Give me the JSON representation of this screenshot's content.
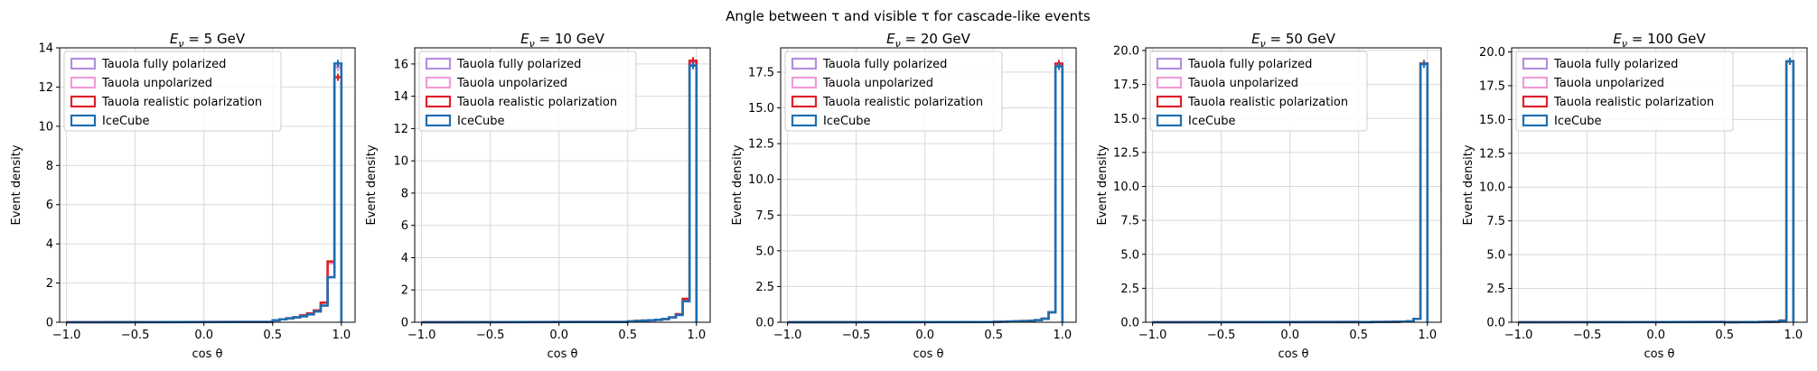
{
  "figure": {
    "title": "Angle between τ and visible τ for cascade-like events"
  },
  "colors": {
    "fully_polarized": "#b48ee0",
    "unpolarized": "#f09cd8",
    "realistic": "#e0202a",
    "icecube": "#1f6fb0",
    "grid": "#d9d9d9"
  },
  "chart_data": [
    {
      "type": "histogram",
      "title": "E_ν = 5 GeV",
      "xlabel": "cos θ",
      "ylabel": "Event density",
      "xlim": [
        -1.05,
        1.1
      ],
      "ylim": [
        0,
        14
      ],
      "xticks": [
        "−1.0",
        "−0.5",
        "0.0",
        "0.5",
        "1.0"
      ],
      "yticks": [
        "0",
        "2",
        "4",
        "6",
        "8",
        "10",
        "12",
        "14"
      ],
      "grid": true,
      "legend_location": "upper left",
      "bin_edges": [
        0.5,
        0.55,
        0.6,
        0.65,
        0.7,
        0.75,
        0.8,
        0.85,
        0.9,
        0.95,
        1.0
      ],
      "series": [
        {
          "name": "Tauola fully polarized",
          "values": [
            0.1,
            0.15,
            0.2,
            0.25,
            0.35,
            0.45,
            0.6,
            1.0,
            3.05,
            13.0
          ]
        },
        {
          "name": "Tauola unpolarized",
          "values": [
            0.1,
            0.15,
            0.2,
            0.25,
            0.35,
            0.45,
            0.6,
            1.0,
            3.0,
            13.05
          ]
        },
        {
          "name": "Tauola realistic polarization",
          "values": [
            0.1,
            0.15,
            0.2,
            0.25,
            0.35,
            0.45,
            0.6,
            1.0,
            3.1,
            12.5
          ]
        },
        {
          "name": "IceCube",
          "values": [
            0.1,
            0.15,
            0.2,
            0.25,
            0.3,
            0.4,
            0.55,
            0.85,
            2.3,
            13.2
          ]
        }
      ]
    },
    {
      "type": "histogram",
      "title": "E_ν = 10 GeV",
      "xlabel": "cos θ",
      "ylabel": "Event density",
      "xlim": [
        -1.05,
        1.1
      ],
      "ylim": [
        0,
        17
      ],
      "xticks": [
        "−1.0",
        "−0.5",
        "0.0",
        "0.5",
        "1.0"
      ],
      "yticks": [
        "0",
        "2",
        "4",
        "6",
        "8",
        "10",
        "12",
        "14",
        "16"
      ],
      "grid": true,
      "legend_location": "upper left",
      "bin_edges": [
        0.5,
        0.55,
        0.6,
        0.65,
        0.7,
        0.75,
        0.8,
        0.85,
        0.9,
        0.95,
        1.0
      ],
      "series": [
        {
          "name": "Tauola fully polarized",
          "values": [
            0.05,
            0.08,
            0.1,
            0.12,
            0.15,
            0.2,
            0.3,
            0.5,
            1.4,
            16.1
          ]
        },
        {
          "name": "Tauola unpolarized",
          "values": [
            0.05,
            0.08,
            0.1,
            0.12,
            0.15,
            0.2,
            0.3,
            0.5,
            1.4,
            16.0
          ]
        },
        {
          "name": "Tauola realistic polarization",
          "values": [
            0.05,
            0.08,
            0.1,
            0.12,
            0.15,
            0.2,
            0.3,
            0.5,
            1.45,
            16.2
          ]
        },
        {
          "name": "IceCube",
          "values": [
            0.05,
            0.08,
            0.1,
            0.12,
            0.15,
            0.2,
            0.3,
            0.45,
            1.3,
            15.9
          ]
        }
      ]
    },
    {
      "type": "histogram",
      "title": "E_ν = 20 GeV",
      "xlabel": "cos θ",
      "ylabel": "Event density",
      "xlim": [
        -1.05,
        1.1
      ],
      "ylim": [
        0,
        19.2
      ],
      "xticks": [
        "−1.0",
        "−0.5",
        "0.0",
        "0.5",
        "1.0"
      ],
      "yticks": [
        "0.0",
        "2.5",
        "5.0",
        "7.5",
        "10.0",
        "12.5",
        "15.0",
        "17.5"
      ],
      "grid": true,
      "legend_location": "upper left",
      "bin_edges": [
        0.5,
        0.55,
        0.6,
        0.65,
        0.7,
        0.75,
        0.8,
        0.85,
        0.9,
        0.95,
        1.0
      ],
      "series": [
        {
          "name": "Tauola fully polarized",
          "values": [
            0.03,
            0.04,
            0.05,
            0.07,
            0.08,
            0.1,
            0.15,
            0.25,
            0.7,
            18.0
          ]
        },
        {
          "name": "Tauola unpolarized",
          "values": [
            0.03,
            0.04,
            0.05,
            0.07,
            0.08,
            0.1,
            0.15,
            0.25,
            0.7,
            18.0
          ]
        },
        {
          "name": "Tauola realistic polarization",
          "values": [
            0.03,
            0.04,
            0.05,
            0.07,
            0.08,
            0.1,
            0.15,
            0.25,
            0.7,
            18.1
          ]
        },
        {
          "name": "IceCube",
          "values": [
            0.03,
            0.04,
            0.05,
            0.07,
            0.08,
            0.1,
            0.15,
            0.25,
            0.7,
            17.9
          ]
        }
      ]
    },
    {
      "type": "histogram",
      "title": "E_ν = 50 GeV",
      "xlabel": "cos θ",
      "ylabel": "Event density",
      "xlim": [
        -1.05,
        1.1
      ],
      "ylim": [
        0,
        20.2
      ],
      "xticks": [
        "−1.0",
        "−0.5",
        "0.0",
        "0.5",
        "1.0"
      ],
      "yticks": [
        "0.0",
        "2.5",
        "5.0",
        "7.5",
        "10.0",
        "12.5",
        "15.0",
        "17.5",
        "20.0"
      ],
      "grid": true,
      "legend_location": "upper left",
      "bin_edges": [
        0.5,
        0.55,
        0.6,
        0.65,
        0.7,
        0.75,
        0.8,
        0.85,
        0.9,
        0.95,
        1.0
      ],
      "series": [
        {
          "name": "Tauola fully polarized",
          "values": [
            0.01,
            0.01,
            0.02,
            0.02,
            0.03,
            0.04,
            0.05,
            0.08,
            0.25,
            19.0
          ]
        },
        {
          "name": "Tauola unpolarized",
          "values": [
            0.01,
            0.01,
            0.02,
            0.02,
            0.03,
            0.04,
            0.05,
            0.08,
            0.25,
            19.0
          ]
        },
        {
          "name": "Tauola realistic polarization",
          "values": [
            0.01,
            0.01,
            0.02,
            0.02,
            0.03,
            0.04,
            0.05,
            0.08,
            0.25,
            19.05
          ]
        },
        {
          "name": "IceCube",
          "values": [
            0.01,
            0.01,
            0.02,
            0.02,
            0.03,
            0.04,
            0.05,
            0.08,
            0.25,
            19.0
          ]
        }
      ]
    },
    {
      "type": "histogram",
      "title": "E_ν = 100 GeV",
      "xlabel": "cos θ",
      "ylabel": "Event density",
      "xlim": [
        -1.05,
        1.1
      ],
      "ylim": [
        0,
        20.3
      ],
      "xticks": [
        "−1.0",
        "−0.5",
        "0.0",
        "0.5",
        "1.0"
      ],
      "yticks": [
        "0.0",
        "2.5",
        "5.0",
        "7.5",
        "10.0",
        "12.5",
        "15.0",
        "17.5",
        "20.0"
      ],
      "grid": true,
      "legend_location": "upper left",
      "bin_edges": [
        0.5,
        0.55,
        0.6,
        0.65,
        0.7,
        0.75,
        0.8,
        0.85,
        0.9,
        0.95,
        1.0
      ],
      "series": [
        {
          "name": "Tauola fully polarized",
          "values": [
            0.005,
            0.005,
            0.01,
            0.01,
            0.015,
            0.02,
            0.03,
            0.04,
            0.12,
            19.3
          ]
        },
        {
          "name": "Tauola unpolarized",
          "values": [
            0.005,
            0.005,
            0.01,
            0.01,
            0.015,
            0.02,
            0.03,
            0.04,
            0.12,
            19.3
          ]
        },
        {
          "name": "Tauola realistic polarization",
          "values": [
            0.005,
            0.005,
            0.01,
            0.01,
            0.015,
            0.02,
            0.03,
            0.04,
            0.12,
            19.3
          ]
        },
        {
          "name": "IceCube",
          "values": [
            0.005,
            0.005,
            0.01,
            0.01,
            0.015,
            0.02,
            0.03,
            0.04,
            0.12,
            19.3
          ]
        }
      ]
    }
  ]
}
